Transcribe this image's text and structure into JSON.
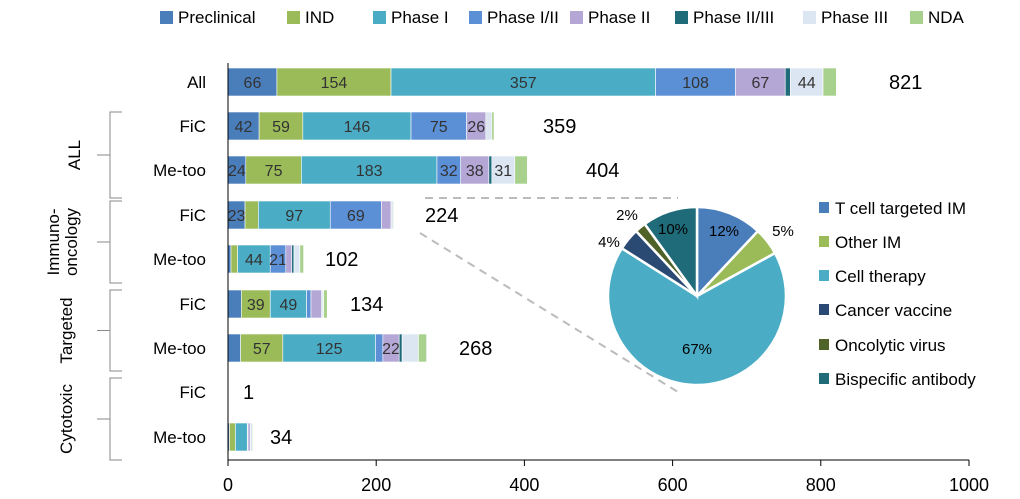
{
  "chart_data": [
    {
      "type": "bar",
      "orientation": "horizontal",
      "stacked": true,
      "categories": [
        "All",
        "ALL FiC",
        "ALL Me-too",
        "Immuno-oncology FiC",
        "Immuno-oncology Me-too",
        "Targeted FiC",
        "Targeted Me-too",
        "Cytotoxic FiC",
        "Cytotoxic Me-too"
      ],
      "row_labels": [
        "All",
        "FiC",
        "Me-too",
        "FiC",
        "Me-too",
        "FiC",
        "Me-too",
        "FiC",
        "Me-too"
      ],
      "group_labels": [
        {
          "text": "ALL",
          "rows": [
            1,
            2
          ]
        },
        {
          "text": "Immuno-\noncology",
          "rows": [
            3,
            4
          ]
        },
        {
          "text": "Targeted",
          "rows": [
            5,
            6
          ]
        },
        {
          "text": "Cytotoxic",
          "rows": [
            7,
            8
          ]
        }
      ],
      "series": [
        {
          "name": "Preclinical",
          "color": "#4a7ebb",
          "values": [
            66,
            42,
            24,
            23,
            4,
            18,
            17,
            0,
            2
          ]
        },
        {
          "name": "IND",
          "color": "#9bbb59",
          "values": [
            154,
            59,
            75,
            18,
            9,
            39,
            57,
            0,
            8
          ]
        },
        {
          "name": "Phase I",
          "color": "#4bacc6",
          "values": [
            357,
            146,
            183,
            97,
            44,
            49,
            125,
            0,
            16
          ]
        },
        {
          "name": "Phase I/II",
          "color": "#5b8fd6",
          "values": [
            108,
            75,
            32,
            69,
            21,
            6,
            10,
            0,
            1
          ]
        },
        {
          "name": "Phase II",
          "color": "#b4a7d6",
          "values": [
            67,
            26,
            38,
            13,
            8,
            14,
            22,
            0,
            3
          ]
        },
        {
          "name": "Phase II/III",
          "color": "#1f6b7a",
          "values": [
            7,
            1,
            4,
            0,
            3,
            1,
            4,
            0,
            0
          ]
        },
        {
          "name": "Phase III",
          "color": "#dce6f2",
          "values": [
            44,
            7,
            31,
            3,
            8,
            2,
            22,
            1,
            3
          ]
        },
        {
          "name": "NDA",
          "color": "#a9d18e",
          "values": [
            18,
            3,
            17,
            1,
            5,
            5,
            11,
            0,
            1
          ]
        }
      ],
      "totals": [
        821,
        359,
        404,
        224,
        102,
        134,
        268,
        1,
        34
      ],
      "data_labels": [
        [
          "66",
          "154",
          "357",
          "108",
          "67",
          "",
          "44",
          ""
        ],
        [
          "42",
          "59",
          "146",
          "75",
          "26",
          "",
          "",
          ""
        ],
        [
          "24",
          "75",
          "183",
          "32",
          "38",
          "",
          "31",
          ""
        ],
        [
          "23",
          "",
          "97",
          "69",
          "",
          "",
          "",
          ""
        ],
        [
          "",
          "",
          "44",
          "21",
          "",
          "",
          "",
          ""
        ],
        [
          "",
          "39",
          "49",
          "",
          "",
          "",
          "",
          ""
        ],
        [
          "",
          "57",
          "125",
          "",
          "22",
          "",
          "",
          ""
        ],
        [
          "",
          "",
          "",
          "",
          "",
          "",
          "",
          ""
        ],
        [
          "",
          "",
          "",
          "",
          "",
          "",
          "",
          ""
        ]
      ],
      "xlim": [
        0,
        1000
      ],
      "x_ticks": [
        "0",
        "200",
        "400",
        "600",
        "800",
        "1000"
      ],
      "xlabel": "",
      "ylabel": "",
      "grid": false,
      "legend_position": "top"
    },
    {
      "type": "pie",
      "slices": [
        {
          "name": "T cell targeted IM",
          "value": 12,
          "label": "12%",
          "color": "#4a7ebb"
        },
        {
          "name": "Other IM",
          "value": 5,
          "label": "5%",
          "color": "#9bbb59"
        },
        {
          "name": "Cell therapy",
          "value": 67,
          "label": "67%",
          "color": "#4bacc6"
        },
        {
          "name": "Cancer vaccine",
          "value": 4,
          "label": "4%",
          "color": "#2a4a73"
        },
        {
          "name": "Oncolytic virus",
          "value": 2,
          "label": "2%",
          "color": "#4f6228"
        },
        {
          "name": "Bispecific antibody",
          "value": 10,
          "label": "10%",
          "color": "#1f6b7a"
        }
      ],
      "legend_position": "right"
    }
  ]
}
